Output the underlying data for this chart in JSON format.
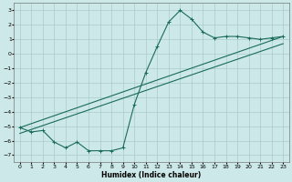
{
  "title": "",
  "xlabel": "Humidex (Indice chaleur)",
  "ylabel": "",
  "bg_color": "#cce8e8",
  "grid_color": "#aacccc",
  "line_color": "#1a6b5a",
  "xlim": [
    -0.5,
    23.5
  ],
  "ylim": [
    -7.5,
    3.5
  ],
  "xticks": [
    0,
    1,
    2,
    3,
    4,
    5,
    6,
    7,
    8,
    9,
    10,
    11,
    12,
    13,
    14,
    15,
    16,
    17,
    18,
    19,
    20,
    21,
    22,
    23
  ],
  "yticks": [
    -7,
    -6,
    -5,
    -4,
    -3,
    -2,
    -1,
    0,
    1,
    2,
    3
  ],
  "line1_x": [
    0,
    1,
    2,
    3,
    4,
    5,
    6,
    7,
    8,
    9,
    10,
    11,
    12,
    13,
    14,
    15,
    16,
    17,
    18,
    19,
    20,
    21,
    22,
    23
  ],
  "line1_y": [
    -5.1,
    -5.4,
    -5.3,
    -6.1,
    -6.5,
    -6.1,
    -6.7,
    -6.7,
    -6.7,
    -6.5,
    -3.5,
    -1.3,
    0.5,
    2.2,
    3.0,
    2.4,
    1.5,
    1.1,
    1.2,
    1.2,
    1.1,
    1.0,
    1.1,
    1.2
  ],
  "line2_x": [
    0,
    23
  ],
  "line2_y": [
    -5.1,
    1.2
  ],
  "line3_x": [
    0,
    23
  ],
  "line3_y": [
    -5.5,
    0.7
  ],
  "figsize": [
    3.2,
    2.0
  ],
  "dpi": 100
}
